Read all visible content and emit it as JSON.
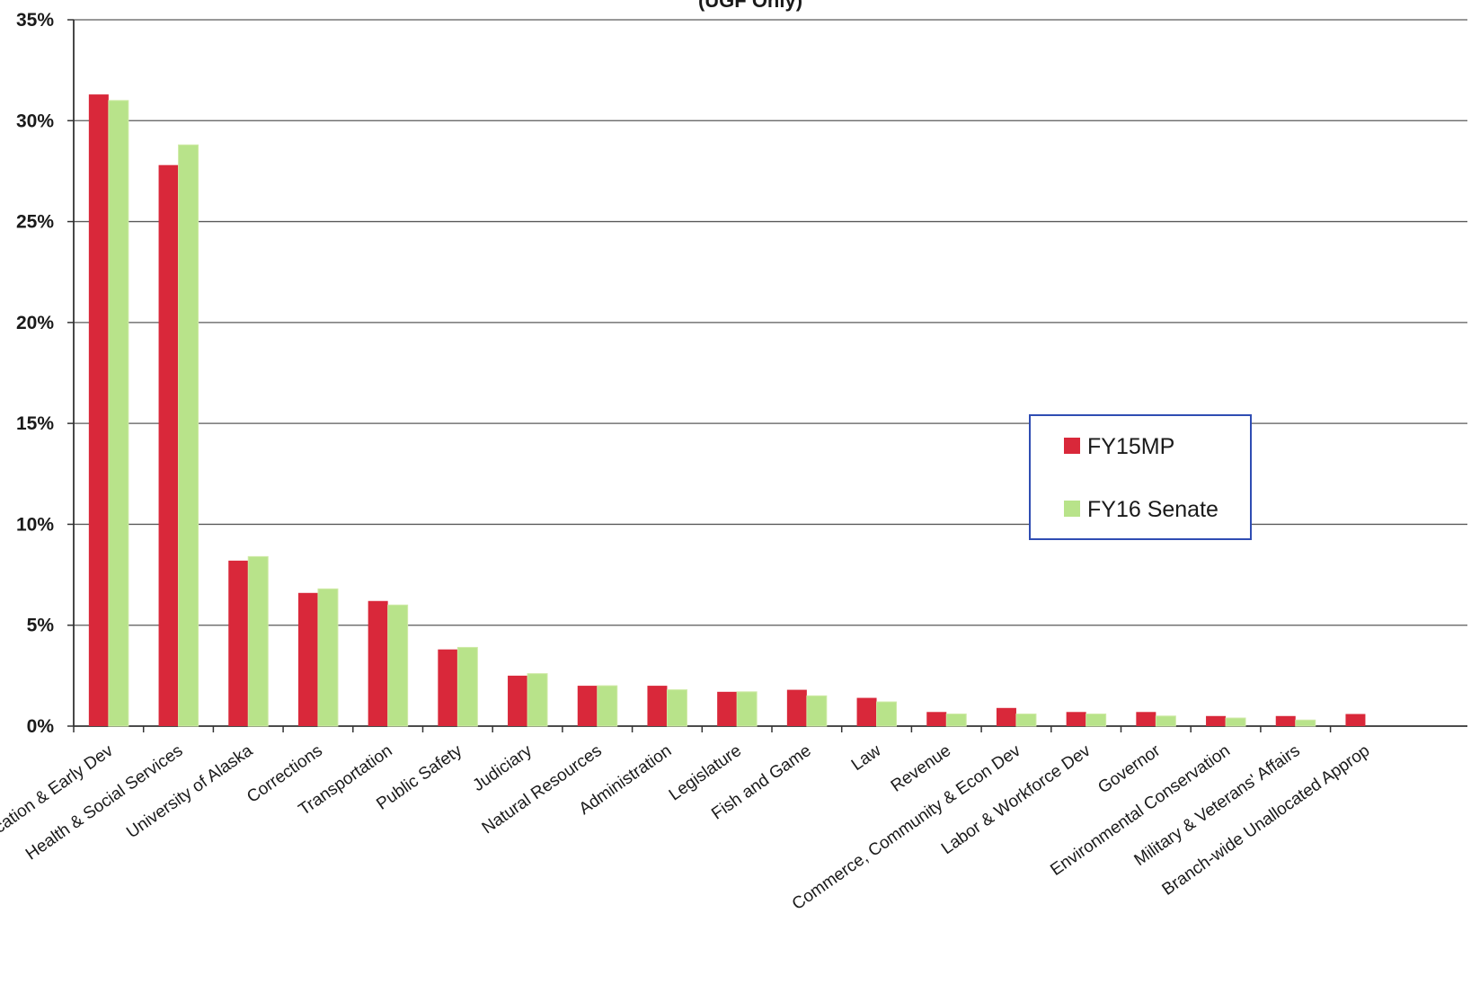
{
  "chart_data": {
    "type": "bar",
    "title": "(UGF Only)",
    "xlabel": "",
    "ylabel": "",
    "ylim": [
      0,
      35
    ],
    "y_ticks": [
      "0%",
      "5%",
      "10%",
      "15%",
      "20%",
      "25%",
      "30%",
      "35%"
    ],
    "grid": true,
    "legend_position": "right",
    "categories": [
      "Education & Early Dev",
      "Health & Social Services",
      "University of Alaska",
      "Corrections",
      "Transportation",
      "Public Safety",
      "Judiciary",
      "Natural Resources",
      "Administration",
      "Legislature",
      "Fish and Game",
      "Law",
      "Revenue",
      "Commerce, Community & Econ Dev",
      "Labor & Workforce Dev",
      "Governor",
      "Environmental Conservation",
      "Military & Veterans' Affairs",
      "Branch-wide Unallocated Approp"
    ],
    "series": [
      {
        "name": "FY15MP",
        "color": "#d9283a",
        "values": [
          31.3,
          27.8,
          8.2,
          6.6,
          6.2,
          3.8,
          2.5,
          2.0,
          2.0,
          1.7,
          1.8,
          1.4,
          0.7,
          0.9,
          0.7,
          0.7,
          0.5,
          0.5,
          0.6
        ]
      },
      {
        "name": "FY16 Senate",
        "color": "#b8e38a",
        "values": [
          31.0,
          28.8,
          8.4,
          6.8,
          6.0,
          3.9,
          2.6,
          2.0,
          1.8,
          1.7,
          1.5,
          1.2,
          0.6,
          0.6,
          0.6,
          0.5,
          0.4,
          0.3,
          0.0
        ]
      }
    ]
  }
}
